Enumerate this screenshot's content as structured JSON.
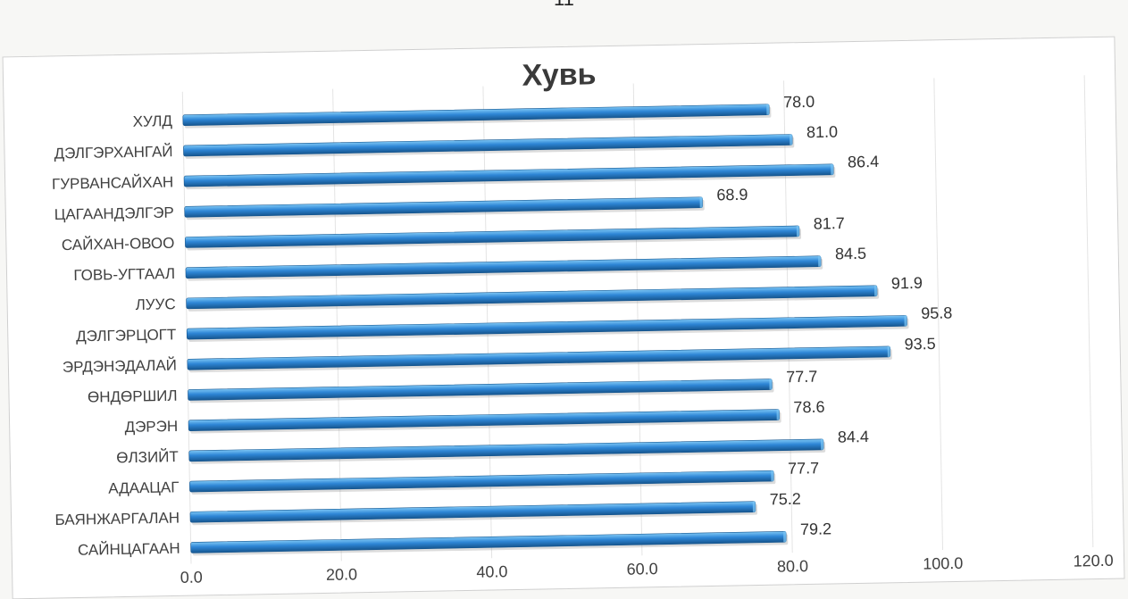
{
  "page_number": "11",
  "chart_data": {
    "type": "bar",
    "orientation": "horizontal",
    "title": "Хувь",
    "categories": [
      "ХУЛД",
      "ДЭЛГЭРХАНГАЙ",
      "ГУРВАНСАЙХАН",
      "ЦАГААНДЭЛГЭР",
      "САЙХАН-ОВОО",
      "ГОВЬ-УГТААЛ",
      "ЛУУС",
      "ДЭЛГЭРЦОГТ",
      "ЭРДЭНЭДАЛАЙ",
      "ӨНДӨРШИЛ",
      "ДЭРЭН",
      "ӨЛЗИЙТ",
      "АДААЦАГ",
      "БАЯНЖАРГАЛАН",
      "САЙНЦАГААН"
    ],
    "values": [
      78.0,
      81.0,
      86.4,
      68.9,
      81.7,
      84.5,
      91.9,
      95.8,
      93.5,
      77.7,
      78.6,
      84.4,
      77.7,
      75.2,
      79.2
    ],
    "value_labels": [
      "78.0",
      "81.0",
      "86.4",
      "68.9",
      "81.7",
      "84.5",
      "91.9",
      "95.8",
      "93.5",
      "77.7",
      "78.6",
      "84.4",
      "77.7",
      "75.2",
      "79.2"
    ],
    "x_ticks": [
      "0.0",
      "20.0",
      "40.0",
      "60.0",
      "80.0",
      "100.0",
      "120.0"
    ],
    "xlim": [
      0,
      120
    ],
    "xlabel": "",
    "ylabel": "",
    "grid": true,
    "legend": "none",
    "bar_color": "#2e86d6",
    "bar_highlight": "#7cc6f5",
    "bar_shadow": "#16568f"
  }
}
